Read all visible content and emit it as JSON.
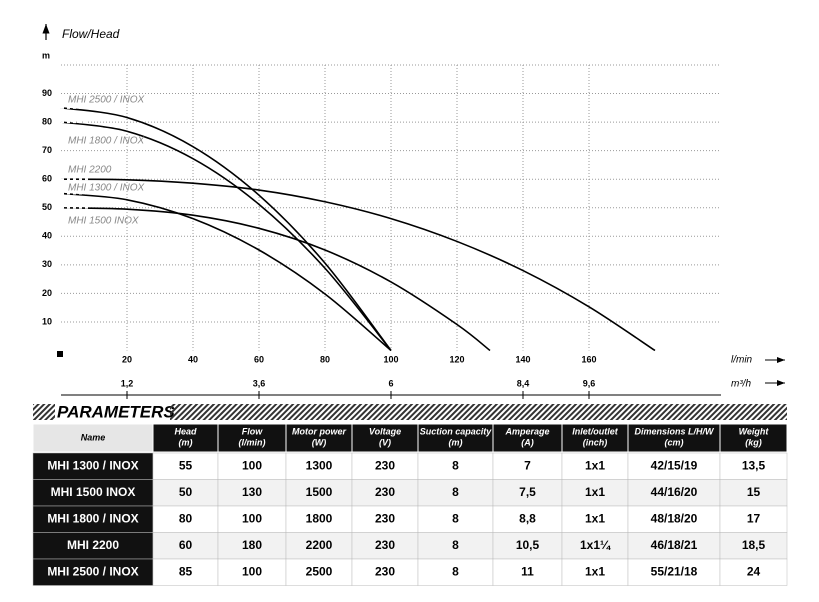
{
  "chart": {
    "title": "Flow/Head",
    "y_unit": "m",
    "x_unit": "l/min",
    "x2_unit": "m³/h",
    "xlim": [
      0,
      200
    ],
    "ylim": [
      0,
      100
    ],
    "xticks": [
      20,
      40,
      60,
      80,
      100,
      120,
      140,
      160
    ],
    "yticks": [
      10,
      20,
      30,
      40,
      50,
      60,
      70,
      80,
      90
    ],
    "x2lim": [
      0,
      12
    ],
    "x2ticks": [
      {
        "value": 1.2,
        "label": "1,2"
      },
      {
        "value": 3.6,
        "label": "3,6"
      },
      {
        "value": 6,
        "label": "6"
      },
      {
        "value": 8.4,
        "label": "8,4"
      },
      {
        "value": 9.6,
        "label": "9,6"
      }
    ],
    "series": [
      {
        "name": "MHI 2500 / INOX",
        "x": [
          0,
          20,
          40,
          60,
          80,
          100
        ],
        "values": [
          85,
          81.6,
          71.4,
          54.4,
          30.6,
          0
        ]
      },
      {
        "name": "MHI 1800 / INOX",
        "x": [
          0,
          20,
          40,
          60,
          80,
          100
        ],
        "values": [
          80,
          76.8,
          67.2,
          51.2,
          28.8,
          0
        ]
      },
      {
        "name": "MHI 2200",
        "x": [
          0,
          20,
          40,
          60,
          80,
          100,
          120,
          140,
          160,
          180
        ],
        "values": [
          60,
          59.8,
          58.6,
          56.2,
          52.1,
          46.2,
          38.2,
          28,
          15.3,
          0
        ]
      },
      {
        "name": "MHI 1300 / INOX",
        "x": [
          0,
          20,
          40,
          60,
          80,
          100
        ],
        "values": [
          55,
          52.8,
          46.2,
          35.2,
          19.8,
          0
        ]
      },
      {
        "name": "MHI 1500 INOX",
        "x": [
          0,
          20,
          40,
          60,
          80,
          100,
          120,
          130
        ],
        "values": [
          50,
          49.5,
          47.4,
          42.8,
          35.2,
          24,
          9.1,
          0
        ]
      }
    ]
  },
  "table": {
    "title": "PARAMETERS",
    "header": [
      [
        "Name"
      ],
      [
        "Head",
        "(m)"
      ],
      [
        "Flow",
        "(l/min)"
      ],
      [
        "Motor power",
        "(W)"
      ],
      [
        "Voltage",
        "(V)"
      ],
      [
        "Suction capacity",
        "(m)"
      ],
      [
        "Amperage",
        "(A)"
      ],
      [
        "Inlet/outlet",
        "(inch)"
      ],
      [
        "Dimensions L/H/W",
        "(cm)"
      ],
      [
        "Weight",
        "(kg)"
      ]
    ],
    "rows": [
      [
        "MHI 1300 / INOX",
        "55",
        "100",
        "1300",
        "230",
        "8",
        "7",
        "1x1",
        "42/15/19",
        "13,5"
      ],
      [
        "MHI 1500 INOX",
        "50",
        "130",
        "1500",
        "230",
        "8",
        "7,5",
        "1x1",
        "44/16/20",
        "15"
      ],
      [
        "MHI 1800 / INOX",
        "80",
        "100",
        "1800",
        "230",
        "8",
        "8,8",
        "1x1",
        "48/18/20",
        "17"
      ],
      [
        "MHI 2200",
        "60",
        "180",
        "2200",
        "230",
        "8",
        "10,5",
        "1x1¼",
        "46/18/21",
        "18,5"
      ],
      [
        "MHI 2500 / INOX",
        "85",
        "100",
        "2500",
        "230",
        "8",
        "11",
        "1x1",
        "55/21/18",
        "24"
      ]
    ]
  }
}
